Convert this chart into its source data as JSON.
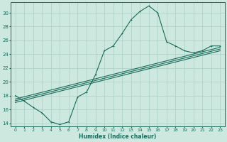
{
  "xlabel": "Humidex (Indice chaleur)",
  "bg_color": "#cce8df",
  "grid_color": "#aacfc4",
  "line_color": "#1a6b5a",
  "xlim": [
    -0.5,
    23.5
  ],
  "ylim": [
    13.5,
    31.5
  ],
  "xticks": [
    0,
    1,
    2,
    3,
    4,
    5,
    6,
    7,
    8,
    9,
    10,
    11,
    12,
    13,
    14,
    15,
    16,
    17,
    18,
    19,
    20,
    21,
    22,
    23
  ],
  "yticks": [
    14,
    16,
    18,
    20,
    22,
    24,
    26,
    28,
    30
  ],
  "curve1_x": [
    0,
    1,
    2,
    3,
    4,
    5,
    6,
    7,
    8,
    9,
    10,
    11,
    12,
    13,
    14,
    15,
    16,
    17,
    18,
    19,
    20,
    21,
    22,
    23
  ],
  "curve1_y": [
    18.0,
    17.2,
    16.3,
    15.5,
    14.2,
    13.8,
    14.2,
    17.8,
    18.5,
    21.0,
    24.5,
    25.2,
    27.0,
    29.0,
    30.2,
    31.0,
    30.0,
    25.8,
    25.2,
    24.5,
    24.2,
    24.5,
    25.2,
    25.2
  ],
  "line1_x": [
    0,
    23
  ],
  "line1_y": [
    17.5,
    25.0
  ],
  "line2_x": [
    0,
    23
  ],
  "line2_y": [
    17.0,
    24.5
  ],
  "line3_x": [
    0,
    23
  ],
  "line3_y": [
    17.25,
    24.75
  ]
}
